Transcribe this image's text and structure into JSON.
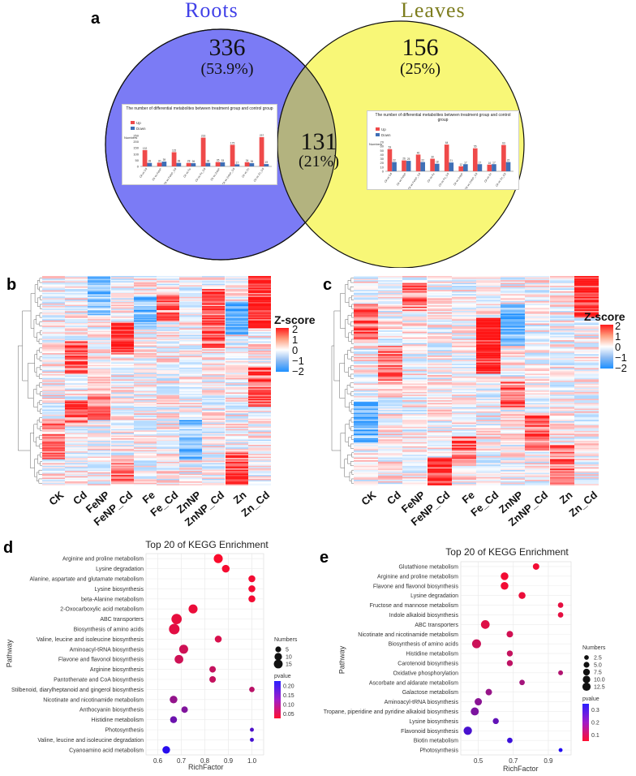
{
  "venn": {
    "label": "a",
    "left_title": "Roots",
    "right_title": "Leaves",
    "left_count": "336",
    "left_pct": "(53.9%)",
    "center_count": "131",
    "center_pct": "(21%)",
    "right_count": "156",
    "right_pct": "(25%)",
    "colors": {
      "left": "#7b7bf5",
      "right": "#f8f777",
      "overlap": "#b3b37f"
    },
    "inset_title": "The number of differential metabolites between treatment group and control group",
    "inset_legend_up": "Up",
    "inset_legend_down": "Down",
    "inset_ylabel": "Numbers"
  },
  "chart_data": [
    {
      "type": "bar",
      "title": "The number of differential metabolites between treatment group and control group",
      "panel": "roots-inset",
      "ylabel": "Numbers",
      "categories": [
        "Ck vs Cd",
        "Ck vs FeNP",
        "Ck vs FeNP_Cd",
        "Ck vs Fe",
        "Ck vs Fe_Cd",
        "Ck vs ZnNP",
        "Ck vs ZnNP_Cd",
        "Ck vs Zn",
        "Ck vs Zn_Cd"
      ],
      "series": [
        {
          "name": "Up",
          "color": "#ef4a4a",
          "values": [
            132,
            30,
            115,
            28,
            233,
            35,
            175,
            34,
            237
          ]
        },
        {
          "name": "Down",
          "color": "#3f6fb6",
          "values": [
            28,
            39,
            28,
            26,
            28,
            33,
            17,
            26,
            19
          ]
        }
      ],
      "ylim": [
        0,
        250
      ],
      "yticks": [
        "0",
        "50",
        "100",
        "150",
        "200",
        "250"
      ]
    },
    {
      "type": "bar",
      "title": "The number of differential metabolites between treatment group and control group",
      "panel": "leaves-inset",
      "ylabel": "Numbers",
      "categories": [
        "Ck vs Cd",
        "Ck vs FeNP",
        "Ck vs FeNP_Cd",
        "Ck vs Fe",
        "Ck vs Fe_Cd",
        "Ck vs ZnNP",
        "Ck vs ZnNP_Cd",
        "Ck vs Zn",
        "Ck vs Zn_Cd"
      ],
      "series": [
        {
          "name": "Up",
          "color": "#ef4a4a",
          "values": [
            53,
            26,
            40,
            30,
            64,
            12,
            55,
            16,
            63
          ]
        },
        {
          "name": "Down",
          "color": "#3f6fb6",
          "values": [
            22,
            25,
            22,
            18,
            21,
            17,
            17,
            17,
            22
          ]
        }
      ],
      "ylim": [
        0,
        70
      ],
      "yticks": [
        "0",
        "10",
        "20",
        "30",
        "40",
        "50",
        "60",
        "70"
      ]
    },
    {
      "type": "heatmap",
      "panel": "b",
      "columns": [
        "CK",
        "Cd",
        "FeNP",
        "FeNP_Cd",
        "Fe",
        "Fe_Cd",
        "ZnNP",
        "ZnNP_Cd",
        "Zn",
        "Zn_Cd"
      ],
      "legend_title": "Z-score",
      "legend_ticks": [
        "2",
        "1",
        "0",
        "−1",
        "−2"
      ],
      "vlim": [
        -2,
        2
      ]
    },
    {
      "type": "heatmap",
      "panel": "c",
      "columns": [
        "CK",
        "Cd",
        "FeNP",
        "FeNP_Cd",
        "Fe",
        "Fe_Cd",
        "ZnNP",
        "ZnNP_Cd",
        "Zn",
        "Zn_Cd"
      ],
      "legend_title": "Z-score",
      "legend_ticks": [
        "2",
        "1",
        "0",
        "−1",
        "−2"
      ],
      "vlim": [
        -2,
        2
      ]
    },
    {
      "type": "scatter",
      "panel": "d",
      "title": "Top 20 of KEGG Enrichment",
      "xlabel": "RichFactor",
      "ylabel": "Pathway",
      "xlim": [
        0.55,
        1.05
      ],
      "xticks": [
        "0.6",
        "0.7",
        "0.8",
        "0.9",
        "1.0"
      ],
      "xtick_values": [
        0.6,
        0.7,
        0.8,
        0.9,
        1.0
      ],
      "size_legend_title": "Numbers",
      "size_legend": [
        "5",
        "10",
        "15"
      ],
      "size_legend_values": [
        5,
        10,
        15
      ],
      "color_legend_title": "pvalue",
      "color_legend": [
        "0.20",
        "0.15",
        "0.10",
        "0.05"
      ],
      "plim": [
        0.0,
        0.24
      ],
      "points": [
        {
          "pathway": "Arginine and proline metabolism",
          "x": 0.857,
          "n": 12,
          "p": 0.005
        },
        {
          "pathway": "Lysine degradation",
          "x": 0.889,
          "n": 8,
          "p": 0.01
        },
        {
          "pathway": "Alanine, aspartate and glutamate metabolism",
          "x": 1.0,
          "n": 6,
          "p": 0.012
        },
        {
          "pathway": "Lysine biosynthesis",
          "x": 1.0,
          "n": 6,
          "p": 0.012
        },
        {
          "pathway": "beta-Alanine metabolism",
          "x": 1.0,
          "n": 6,
          "p": 0.012
        },
        {
          "pathway": "2-Oxocarboxylic acid metabolism",
          "x": 0.75,
          "n": 12,
          "p": 0.02
        },
        {
          "pathway": "ABC transporters",
          "x": 0.68,
          "n": 17,
          "p": 0.025
        },
        {
          "pathway": "Biosynthesis of amino acids",
          "x": 0.67,
          "n": 18,
          "p": 0.03
        },
        {
          "pathway": "Valine, leucine and isoleucine biosynthesis",
          "x": 0.857,
          "n": 6,
          "p": 0.04
        },
        {
          "pathway": "Aminoacyl-tRNA biosynthesis",
          "x": 0.71,
          "n": 12,
          "p": 0.05
        },
        {
          "pathway": "Flavone and flavonol biosynthesis",
          "x": 0.69,
          "n": 11,
          "p": 0.05
        },
        {
          "pathway": "Arginine biosynthesis",
          "x": 0.833,
          "n": 5,
          "p": 0.06
        },
        {
          "pathway": "Pantothenate and CoA biosynthesis",
          "x": 0.833,
          "n": 5,
          "p": 0.06
        },
        {
          "pathway": "Stilbenoid, diarylheptanoid and gingerol biosynthesis",
          "x": 1.0,
          "n": 3,
          "p": 0.07
        },
        {
          "pathway": "Nicotinate and nicotinamide metabolism",
          "x": 0.667,
          "n": 8,
          "p": 0.11
        },
        {
          "pathway": "Anthocyanin biosynthesis",
          "x": 0.714,
          "n": 5,
          "p": 0.13
        },
        {
          "pathway": "Histidine metabolism",
          "x": 0.667,
          "n": 6,
          "p": 0.15
        },
        {
          "pathway": "Photosynthesis",
          "x": 1.0,
          "n": 1,
          "p": 0.18
        },
        {
          "pathway": "Valine, leucine and isoleucine degradation",
          "x": 1.0,
          "n": 1,
          "p": 0.19
        },
        {
          "pathway": "Cyanoamino acid metabolism",
          "x": 0.636,
          "n": 8,
          "p": 0.22
        }
      ]
    },
    {
      "type": "scatter",
      "panel": "e",
      "title": "Top 20 of KEGG Enrichment",
      "xlabel": "RichFactor",
      "ylabel": "Pathway",
      "xlim": [
        0.4,
        1.03
      ],
      "xticks": [
        "0.5",
        "0.7",
        "0.9"
      ],
      "xtick_values": [
        0.5,
        0.7,
        0.9
      ],
      "size_legend_title": "Numbers",
      "size_legend": [
        "2.5",
        "5.0",
        "7.5",
        "10.0",
        "12.5"
      ],
      "size_legend_values": [
        2.5,
        5.0,
        7.5,
        10.0,
        12.5
      ],
      "color_legend_title": "pvalue",
      "color_legend": [
        "0.3",
        "0.2",
        "0.1"
      ],
      "plim": [
        0.0,
        0.36
      ],
      "points": [
        {
          "pathway": "Glutathione metabolism",
          "x": 0.83,
          "n": 5,
          "p": 0.02
        },
        {
          "pathway": "Arginine and proline metabolism",
          "x": 0.65,
          "n": 8,
          "p": 0.02
        },
        {
          "pathway": "Flavone and flavonol biosynthesis",
          "x": 0.65,
          "n": 8,
          "p": 0.02
        },
        {
          "pathway": "Lysine degradation",
          "x": 0.75,
          "n": 6,
          "p": 0.03
        },
        {
          "pathway": "Fructose and mannose metabolism",
          "x": 0.97,
          "n": 3,
          "p": 0.04
        },
        {
          "pathway": "Indole alkaloid biosynthesis",
          "x": 0.97,
          "n": 3,
          "p": 0.04
        },
        {
          "pathway": "ABC transporters",
          "x": 0.54,
          "n": 11,
          "p": 0.05
        },
        {
          "pathway": "Nicotinate and nicotinamide metabolism",
          "x": 0.68,
          "n": 5,
          "p": 0.07
        },
        {
          "pathway": "Biosynthesis of amino acids",
          "x": 0.49,
          "n": 12,
          "p": 0.08
        },
        {
          "pathway": "Histidine metabolism",
          "x": 0.68,
          "n": 4,
          "p": 0.09
        },
        {
          "pathway": "Carotenoid biosynthesis",
          "x": 0.68,
          "n": 4,
          "p": 0.1
        },
        {
          "pathway": "Oxidative phosphorylation",
          "x": 0.97,
          "n": 2,
          "p": 0.12
        },
        {
          "pathway": "Ascorbate and aldarate metabolism",
          "x": 0.75,
          "n": 3,
          "p": 0.14
        },
        {
          "pathway": "Galactose metabolism",
          "x": 0.56,
          "n": 5,
          "p": 0.16
        },
        {
          "pathway": "Aminoacyl-tRNA biosynthesis",
          "x": 0.5,
          "n": 7,
          "p": 0.18
        },
        {
          "pathway": "Tropane, piperidine and pyridine alkaloid biosynthesis",
          "x": 0.48,
          "n": 9,
          "p": 0.2
        },
        {
          "pathway": "Lysine biosynthesis",
          "x": 0.6,
          "n": 4,
          "p": 0.24
        },
        {
          "pathway": "Flavonoid biosynthesis",
          "x": 0.44,
          "n": 10,
          "p": 0.28
        },
        {
          "pathway": "Biotin metabolism",
          "x": 0.68,
          "n": 3,
          "p": 0.3
        },
        {
          "pathway": "Photosynthesis",
          "x": 0.97,
          "n": 1,
          "p": 0.34
        }
      ]
    }
  ],
  "panels": {
    "b": "b",
    "c": "c",
    "d": "d",
    "e": "e"
  }
}
